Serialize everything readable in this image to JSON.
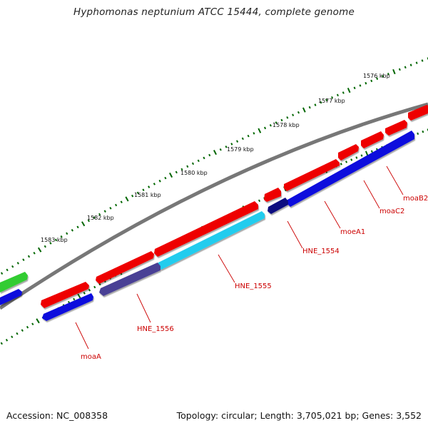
{
  "header": {
    "title": "Hyphomonas neptunium ATCC 15444, complete genome"
  },
  "footer": {
    "accession": "Accession: NC_008358",
    "summary": "Topology: circular; Length: 3,705,021 bp; Genes: 3,552"
  },
  "scale": {
    "tick_labels": [
      "1576 kbp",
      "1577 kbp",
      "1578 kbp",
      "1579 kbp",
      "1580 kbp",
      "1581 kbp",
      "1582 kbp",
      "1583 kbp"
    ]
  },
  "genes": [
    {
      "label": "moaB2",
      "strand": "forward",
      "color": "#ee0000"
    },
    {
      "label": "moaC2",
      "strand": "forward",
      "color": "#ee0000"
    },
    {
      "label": "moeA1",
      "strand": "forward",
      "color": "#ee0000"
    },
    {
      "label": "HNE_1554",
      "strand": "forward",
      "color": "#ee0000"
    },
    {
      "label": "HNE_1555",
      "strand": "reverse",
      "color": "#22ccee"
    },
    {
      "label": "HNE_1556",
      "strand": "reverse",
      "color": "#4a4095"
    },
    {
      "label": "moaA",
      "strand": "reverse",
      "color": "#1010dd"
    }
  ],
  "colors": {
    "forward_cds": "#ee0000",
    "reverse_cds": "#1010dd",
    "dark_reverse_cds": "#101080",
    "other_feature": "#33cc33",
    "backbone": "#777777",
    "ticks": "#006600",
    "gene_label": "#cc0000"
  }
}
